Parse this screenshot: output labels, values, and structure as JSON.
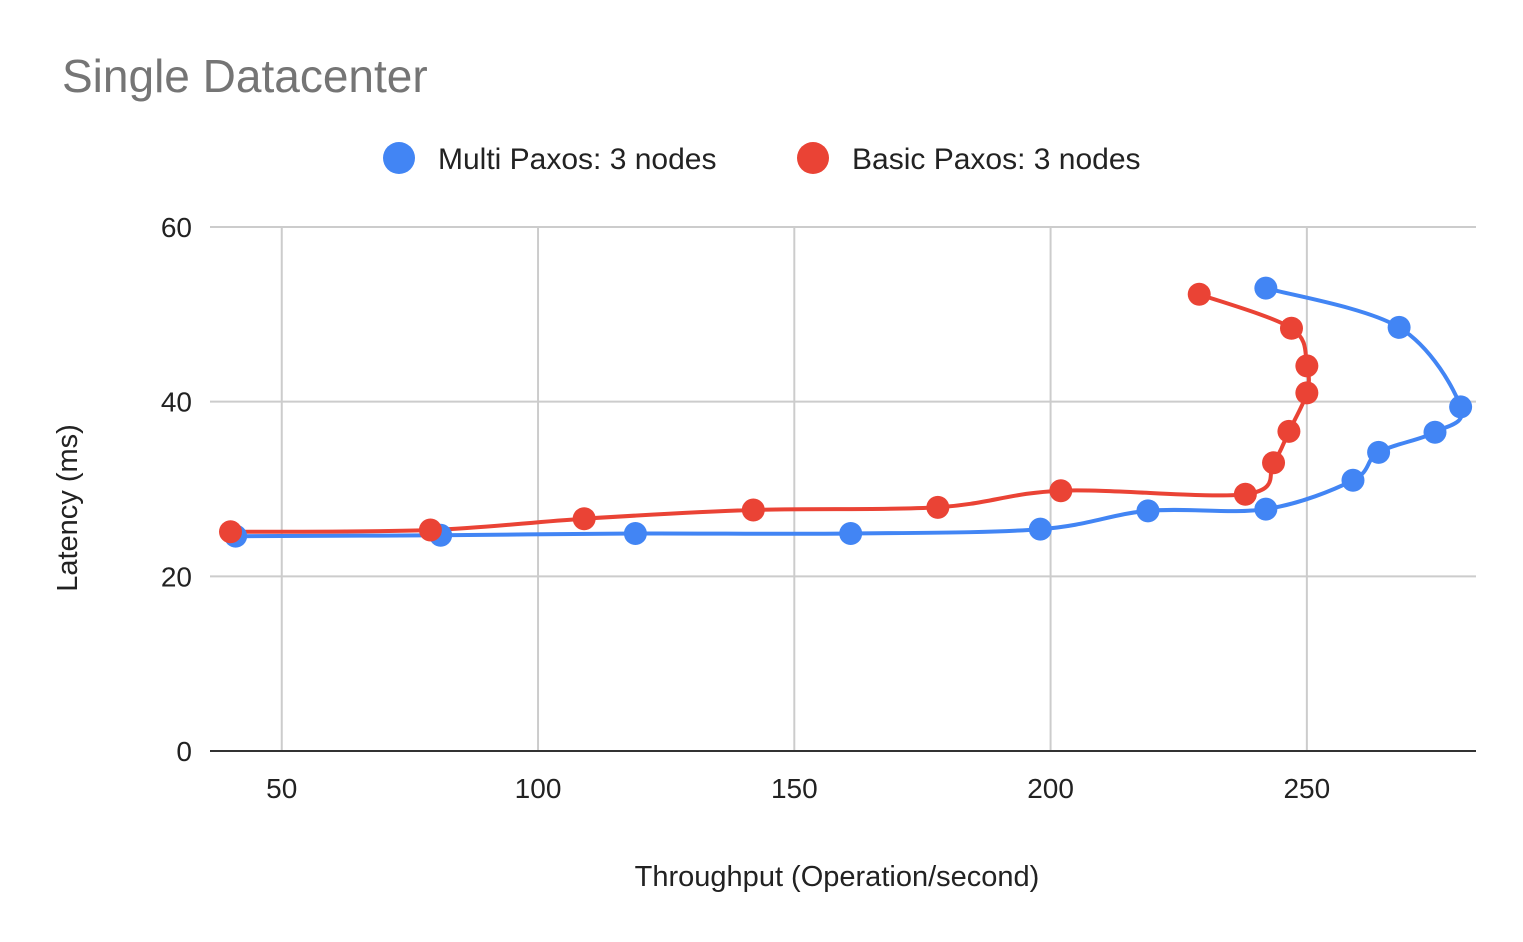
{
  "chart_data": {
    "type": "line",
    "title": "Single Datacenter",
    "xlabel": "Throughput (Operation/second)",
    "ylabel": "Latency (ms)",
    "xlim": [
      36,
      283
    ],
    "ylim": [
      0,
      60
    ],
    "xticks": [
      "50",
      "100",
      "150",
      "200",
      "250"
    ],
    "yticks": [
      "0",
      "20",
      "40",
      "60"
    ],
    "grid": true,
    "legend_position": "top",
    "series": [
      {
        "name": "Multi Paxos: 3 nodes",
        "color": "#4285f4",
        "points": [
          {
            "x": 41,
            "y": 24.6
          },
          {
            "x": 81,
            "y": 24.7
          },
          {
            "x": 119,
            "y": 24.9
          },
          {
            "x": 161,
            "y": 24.9
          },
          {
            "x": 198,
            "y": 25.4
          },
          {
            "x": 219,
            "y": 27.5
          },
          {
            "x": 242,
            "y": 27.7
          },
          {
            "x": 259,
            "y": 31.0
          },
          {
            "x": 264,
            "y": 34.2
          },
          {
            "x": 275,
            "y": 36.5
          },
          {
            "x": 280,
            "y": 39.4
          },
          {
            "x": 268,
            "y": 48.5
          },
          {
            "x": 242,
            "y": 53.0
          }
        ]
      },
      {
        "name": "Basic Paxos: 3 nodes",
        "color": "#ea4335",
        "points": [
          {
            "x": 40,
            "y": 25.1
          },
          {
            "x": 79,
            "y": 25.3
          },
          {
            "x": 109,
            "y": 26.6
          },
          {
            "x": 142,
            "y": 27.6
          },
          {
            "x": 178,
            "y": 27.9
          },
          {
            "x": 202,
            "y": 29.8
          },
          {
            "x": 238,
            "y": 29.4
          },
          {
            "x": 243.5,
            "y": 33.0
          },
          {
            "x": 246.5,
            "y": 36.6
          },
          {
            "x": 250,
            "y": 41.0
          },
          {
            "x": 250,
            "y": 44.1
          },
          {
            "x": 247,
            "y": 48.4
          },
          {
            "x": 229,
            "y": 52.3
          }
        ]
      }
    ]
  }
}
